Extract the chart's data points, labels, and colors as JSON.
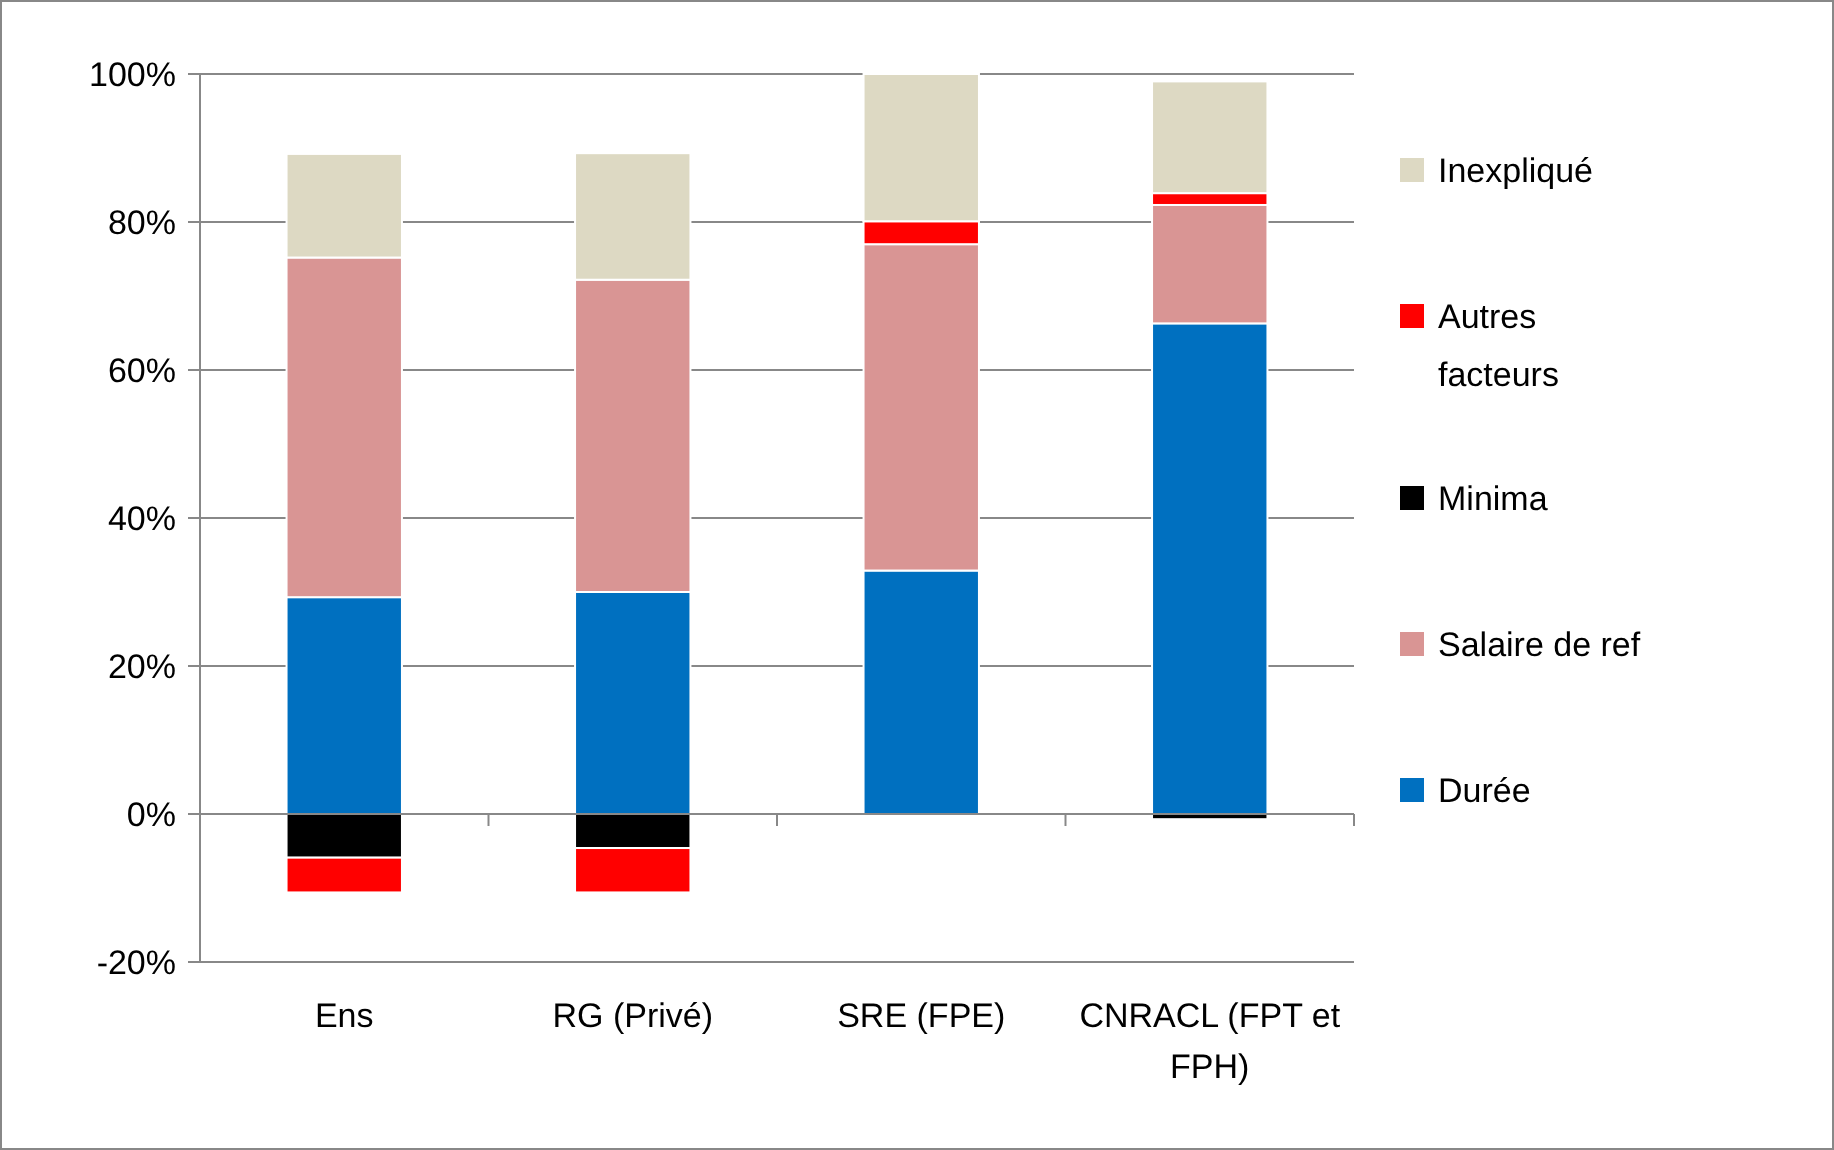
{
  "chart_data": {
    "type": "bar",
    "stacked": true,
    "categories": [
      "Ens",
      "RG (Privé)",
      "SRE (FPE)",
      "CNRACL (FPT et FPH)"
    ],
    "series": [
      {
        "name": "Durée",
        "color": "#0070c0",
        "values": [
          29.3,
          30.0,
          32.9,
          66.3
        ]
      },
      {
        "name": "Salaire de ref",
        "color": "#d99594",
        "values": [
          45.9,
          42.2,
          44.1,
          16.0
        ]
      },
      {
        "name": "Minima",
        "color": "#000000",
        "values": [
          -5.9,
          -4.6,
          null,
          -0.7
        ]
      },
      {
        "name": "Autres facteurs",
        "color": "#ff0000",
        "values": [
          -4.7,
          -6.0,
          3.1,
          1.6
        ]
      },
      {
        "name": "Inexpliqué",
        "color": "#ddd9c3",
        "values": [
          14.0,
          17.1,
          19.9,
          15.1
        ]
      }
    ],
    "ylim": [
      -20,
      100
    ],
    "yticks": [
      {
        "value": -20,
        "label": "-20%"
      },
      {
        "value": 0,
        "label": "0%"
      },
      {
        "value": 20,
        "label": "20%"
      },
      {
        "value": 40,
        "label": "40%"
      },
      {
        "value": 60,
        "label": "60%"
      },
      {
        "value": 80,
        "label": "80%"
      },
      {
        "value": 100,
        "label": "100%"
      }
    ],
    "grid": "y",
    "legend": "right"
  }
}
